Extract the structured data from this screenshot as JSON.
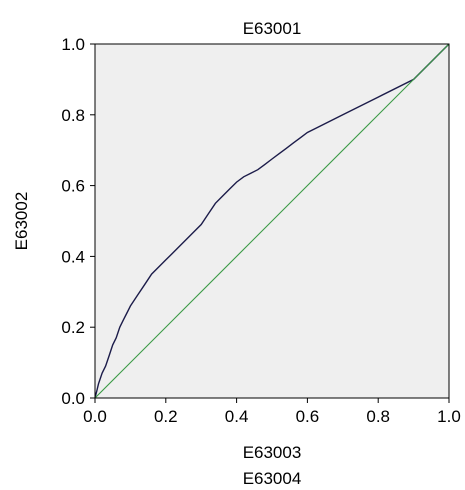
{
  "chart_data": {
    "type": "line",
    "title": "E63001",
    "ylabel": "E63002",
    "xlabel": "E63003",
    "footer_label": "E63004",
    "xlim": [
      0.0,
      1.0
    ],
    "ylim": [
      0.0,
      1.0
    ],
    "x_ticks": [
      "0.0",
      "0.2",
      "0.4",
      "0.6",
      "0.8",
      "1.0"
    ],
    "y_ticks": [
      "0.0",
      "0.2",
      "0.4",
      "0.6",
      "0.8",
      "1.0"
    ],
    "grid": false,
    "plot_background": "#efefef",
    "series": [
      {
        "color": "#1c1c4a",
        "x": [
          0.0,
          0.005,
          0.01,
          0.02,
          0.03,
          0.04,
          0.05,
          0.06,
          0.07,
          0.08,
          0.09,
          0.1,
          0.12,
          0.14,
          0.16,
          0.18,
          0.2,
          0.22,
          0.24,
          0.26,
          0.28,
          0.3,
          0.32,
          0.34,
          0.36,
          0.38,
          0.4,
          0.42,
          0.44,
          0.46,
          0.48,
          0.5,
          0.52,
          0.54,
          0.56,
          0.58,
          0.6,
          0.7,
          0.8,
          0.9,
          1.0
        ],
        "y": [
          0.0,
          0.02,
          0.04,
          0.07,
          0.09,
          0.12,
          0.15,
          0.17,
          0.2,
          0.22,
          0.24,
          0.26,
          0.29,
          0.32,
          0.35,
          0.37,
          0.39,
          0.41,
          0.43,
          0.45,
          0.47,
          0.49,
          0.52,
          0.55,
          0.57,
          0.59,
          0.61,
          0.625,
          0.635,
          0.645,
          0.66,
          0.675,
          0.69,
          0.705,
          0.72,
          0.735,
          0.75,
          0.8,
          0.85,
          0.9,
          1.0
        ]
      },
      {
        "color": "#3a9a45",
        "x": [
          0.0,
          1.0
        ],
        "y": [
          0.0,
          1.0
        ]
      }
    ]
  }
}
